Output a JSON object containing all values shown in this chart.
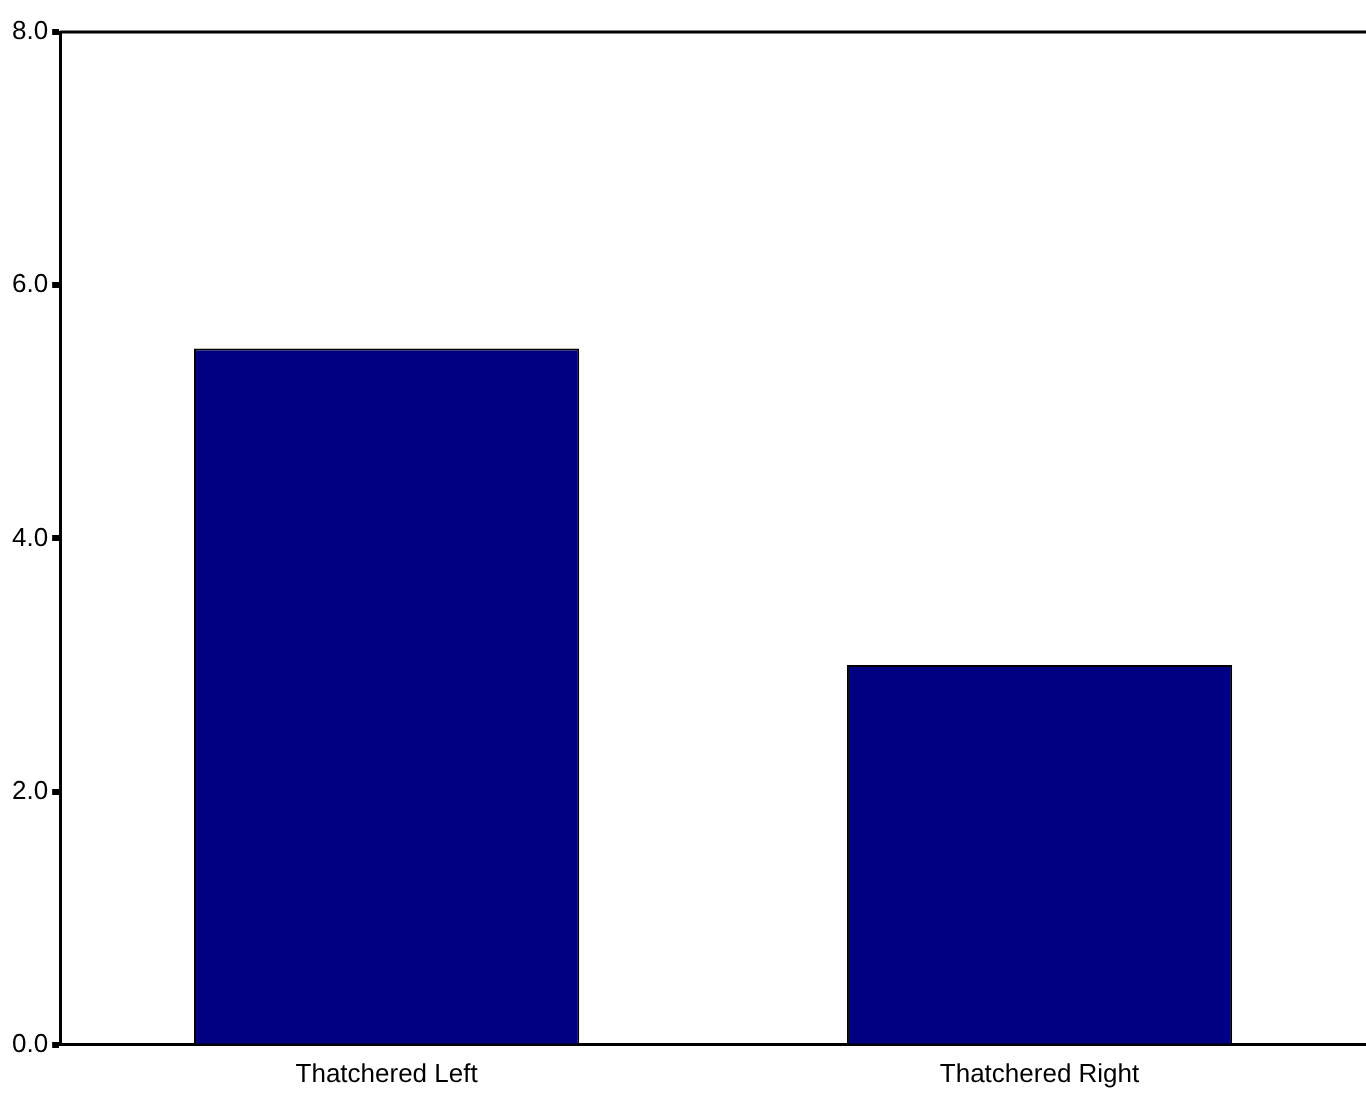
{
  "chart_data": {
    "type": "bar",
    "categories": [
      "Thatchered Left",
      "Thatchered Right"
    ],
    "values": [
      5.5,
      3.0
    ],
    "color": "#000080",
    "ylim": [
      0,
      8
    ],
    "yticks": [
      {
        "value": 0,
        "label": "0.0"
      },
      {
        "value": 2,
        "label": "2.0"
      },
      {
        "value": 4,
        "label": "4.0"
      },
      {
        "value": 6,
        "label": "6.0"
      },
      {
        "value": 8,
        "label": "8.0"
      }
    ],
    "grid": false,
    "legend": false
  }
}
